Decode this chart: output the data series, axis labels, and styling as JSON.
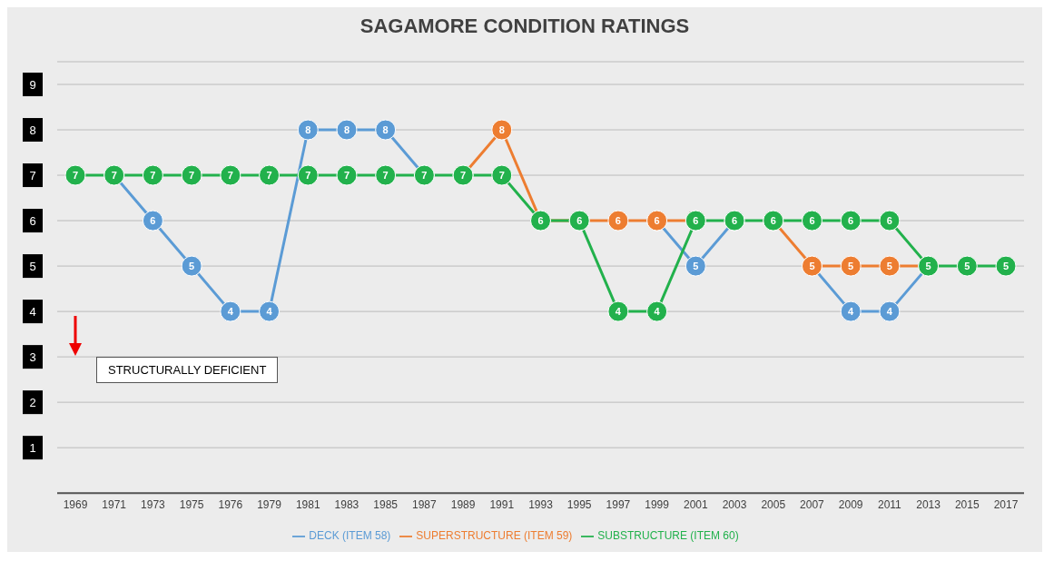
{
  "chart_data": {
    "type": "line",
    "title": "SAGAMORE CONDITION RATINGS",
    "categories": [
      "1969",
      "1971",
      "1973",
      "1975",
      "1976",
      "1979",
      "1981",
      "1983",
      "1985",
      "1987",
      "1989",
      "1991",
      "1993",
      "1995",
      "1997",
      "1999",
      "2001",
      "2003",
      "2005",
      "2007",
      "2009",
      "2011",
      "2013",
      "2015",
      "2017"
    ],
    "series": [
      {
        "name": "DECK (ITEM 58)",
        "color": "#5b9bd5",
        "values": [
          null,
          7,
          6,
          5,
          4,
          4,
          8,
          8,
          8,
          7,
          null,
          null,
          null,
          null,
          null,
          6,
          5,
          6,
          null,
          5,
          4,
          4,
          5,
          null,
          null
        ],
        "value_labels": [
          null,
          null,
          "6",
          "5",
          "4",
          "4",
          "8",
          "8",
          "8",
          null,
          null,
          null,
          null,
          null,
          null,
          null,
          "5",
          null,
          null,
          null,
          "4",
          "4",
          null,
          null,
          null
        ]
      },
      {
        "name": "SUPERSTRUCTURE (ITEM 59)",
        "color": "#ed7d31",
        "values": [
          null,
          null,
          null,
          null,
          null,
          null,
          null,
          null,
          null,
          null,
          7,
          8,
          6,
          6,
          6,
          6,
          6,
          null,
          6,
          5,
          5,
          5,
          5,
          null,
          null
        ],
        "value_labels": [
          null,
          null,
          null,
          null,
          null,
          null,
          null,
          null,
          null,
          null,
          null,
          "8",
          null,
          null,
          "6",
          "6",
          null,
          null,
          null,
          "5",
          "5",
          "5",
          null,
          null,
          null
        ]
      },
      {
        "name": "SUBSTRUCTURE (ITEM 60)",
        "color": "#22b14c",
        "values": [
          7,
          7,
          7,
          7,
          7,
          7,
          7,
          7,
          7,
          7,
          7,
          7,
          6,
          6,
          4,
          4,
          6,
          6,
          6,
          6,
          6,
          6,
          5,
          5,
          5
        ],
        "value_labels": [
          "7",
          "7",
          "7",
          "7",
          "7",
          "7",
          "7",
          "7",
          "7",
          "7",
          "7",
          "7",
          "6",
          "6",
          "4",
          "4",
          "6",
          "6",
          "6",
          "6",
          "6",
          "6",
          "5",
          "5",
          "5"
        ]
      }
    ],
    "ylim": [
      0,
      9.5
    ],
    "yticks": [
      1,
      2,
      3,
      4,
      5,
      6,
      7,
      8,
      9
    ],
    "grid": "y",
    "legend": "bottom",
    "marker": "circle",
    "annotations": [
      "STRUCTURALLY DEFICIENT"
    ]
  }
}
